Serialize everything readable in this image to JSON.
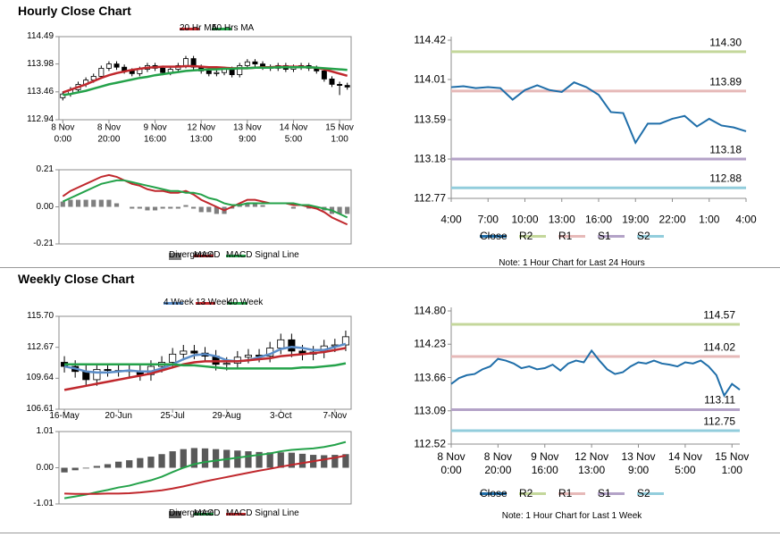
{
  "sections": [
    {
      "title": "Hourly Close Chart"
    },
    {
      "title": "Weekly Close Chart"
    }
  ],
  "chart_data": [
    {
      "type": "candlestick",
      "categories": [
        "8 Nov\n0:00",
        null,
        null,
        null,
        null,
        null,
        "8 Nov\n20:00",
        null,
        null,
        null,
        null,
        null,
        "9 Nov\n16:00",
        null,
        null,
        null,
        null,
        null,
        "12 Nov\n13:00",
        null,
        null,
        null,
        null,
        null,
        "13 Nov\n9:00",
        null,
        null,
        null,
        null,
        null,
        "14 Nov\n5:00",
        null,
        null,
        null,
        null,
        null,
        "15 Nov\n1:00",
        null
      ],
      "open": [
        113.35,
        113.42,
        113.5,
        113.6,
        113.68,
        113.75,
        113.9,
        113.98,
        113.92,
        113.85,
        113.8,
        113.88,
        113.95,
        113.9,
        113.82,
        113.88,
        113.95,
        114.08,
        113.92,
        113.85,
        113.8,
        113.82,
        113.88,
        113.78,
        113.95,
        114.02,
        113.98,
        113.92,
        113.9,
        113.95,
        113.88,
        113.92,
        113.95,
        113.9,
        113.85,
        113.7,
        113.6,
        113.58
      ],
      "high": [
        113.47,
        113.55,
        113.65,
        113.73,
        113.8,
        113.95,
        114.03,
        114.03,
        113.97,
        113.9,
        113.93,
        114.0,
        114.0,
        113.95,
        113.93,
        114.0,
        114.13,
        114.13,
        113.97,
        113.9,
        113.87,
        113.93,
        113.93,
        114.0,
        114.07,
        114.07,
        114.03,
        113.97,
        114.0,
        114.0,
        113.97,
        114.0,
        114.0,
        113.95,
        113.9,
        113.75,
        113.65,
        113.63
      ],
      "low": [
        113.3,
        113.37,
        113.45,
        113.55,
        113.63,
        113.7,
        113.85,
        113.87,
        113.8,
        113.75,
        113.75,
        113.83,
        113.85,
        113.77,
        113.77,
        113.83,
        113.9,
        113.87,
        113.8,
        113.75,
        113.75,
        113.77,
        113.73,
        113.73,
        113.9,
        113.93,
        113.87,
        113.85,
        113.85,
        113.83,
        113.83,
        113.87,
        113.85,
        113.8,
        113.65,
        113.55,
        113.4,
        113.5
      ],
      "close": [
        113.42,
        113.5,
        113.6,
        113.68,
        113.75,
        113.9,
        113.98,
        113.92,
        113.85,
        113.8,
        113.88,
        113.95,
        113.9,
        113.82,
        113.88,
        113.95,
        114.08,
        113.92,
        113.85,
        113.8,
        113.82,
        113.88,
        113.78,
        113.95,
        114.02,
        113.98,
        113.92,
        113.9,
        113.95,
        113.88,
        113.92,
        113.95,
        113.9,
        113.85,
        113.7,
        113.6,
        113.58,
        113.55
      ],
      "up_color": "#ffffff",
      "down_color": "#000000",
      "series": [
        {
          "name": "20 Hr MA",
          "color": "#c0282d",
          "values": [
            113.45,
            113.5,
            113.55,
            113.6,
            113.66,
            113.72,
            113.77,
            113.81,
            113.84,
            113.87,
            113.89,
            113.91,
            113.92,
            113.93,
            113.93,
            113.93,
            113.94,
            113.94,
            113.93,
            113.92,
            113.92,
            113.91,
            113.9,
            113.9,
            113.9,
            113.91,
            113.92,
            113.92,
            113.93,
            113.93,
            113.93,
            113.93,
            113.92,
            113.91,
            113.88,
            113.84,
            113.8,
            113.76
          ]
        },
        {
          "name": "50 Hrs MA",
          "color": "#24a24a",
          "values": [
            113.4,
            113.42,
            113.45,
            113.48,
            113.52,
            113.56,
            113.6,
            113.63,
            113.66,
            113.69,
            113.72,
            113.74,
            113.77,
            113.79,
            113.81,
            113.83,
            113.85,
            113.86,
            113.87,
            113.88,
            113.88,
            113.89,
            113.89,
            113.9,
            113.9,
            113.91,
            113.91,
            113.91,
            113.92,
            113.92,
            113.92,
            113.92,
            113.92,
            113.91,
            113.9,
            113.89,
            113.88,
            113.87
          ]
        }
      ],
      "ylim": [
        112.94,
        114.49
      ],
      "yticks": [
        112.94,
        113.46,
        113.98,
        114.49
      ]
    },
    {
      "type": "macd",
      "series": [
        {
          "name": "Divergence",
          "color": "#7f7f7f",
          "style": "bar",
          "values": [
            0.03,
            0.04,
            0.04,
            0.04,
            0.04,
            0.04,
            0.04,
            0.02,
            0.0,
            -0.01,
            -0.01,
            -0.02,
            -0.02,
            -0.01,
            -0.01,
            -0.01,
            0.01,
            -0.01,
            -0.03,
            -0.03,
            -0.04,
            -0.04,
            -0.01,
            0.01,
            0.02,
            0.02,
            0.01,
            0.0,
            0.0,
            0.0,
            -0.01,
            0.0,
            -0.01,
            -0.01,
            -0.02,
            -0.04,
            -0.04,
            -0.04
          ]
        },
        {
          "name": "MACD",
          "color": "#c0282d",
          "values": [
            0.06,
            0.09,
            0.11,
            0.13,
            0.15,
            0.17,
            0.18,
            0.17,
            0.15,
            0.13,
            0.12,
            0.1,
            0.09,
            0.09,
            0.08,
            0.08,
            0.09,
            0.07,
            0.04,
            0.02,
            0.0,
            -0.02,
            0.0,
            0.02,
            0.04,
            0.04,
            0.03,
            0.02,
            0.02,
            0.02,
            0.01,
            0.01,
            0.0,
            -0.01,
            -0.03,
            -0.06,
            -0.08,
            -0.1
          ]
        },
        {
          "name": "MACD Signal Line",
          "color": "#24a24a",
          "values": [
            0.03,
            0.05,
            0.07,
            0.09,
            0.11,
            0.13,
            0.14,
            0.15,
            0.15,
            0.14,
            0.13,
            0.12,
            0.11,
            0.1,
            0.09,
            0.09,
            0.08,
            0.08,
            0.07,
            0.05,
            0.04,
            0.02,
            0.01,
            0.01,
            0.02,
            0.02,
            0.02,
            0.02,
            0.02,
            0.02,
            0.02,
            0.01,
            0.01,
            0.0,
            -0.01,
            -0.02,
            -0.04,
            -0.06
          ]
        }
      ],
      "ylim": [
        -0.21,
        0.21
      ],
      "yticks": [
        -0.21,
        {
          "value": 0,
          "label": "0.00"
        },
        0.21
      ]
    },
    {
      "type": "line",
      "categories": [
        "4:00",
        null,
        null,
        "7:00",
        null,
        null,
        "10:00",
        null,
        null,
        "13:00",
        null,
        null,
        "16:00",
        null,
        null,
        "19:00",
        null,
        null,
        "22:00",
        null,
        null,
        "1:00",
        null,
        null,
        "4:00"
      ],
      "series": [
        {
          "name": "Close",
          "color": "#1f6ea9",
          "values": [
            113.93,
            113.94,
            113.92,
            113.93,
            113.92,
            113.8,
            113.9,
            113.95,
            113.9,
            113.88,
            113.98,
            113.93,
            113.85,
            113.67,
            113.66,
            113.35,
            113.55,
            113.55,
            113.6,
            113.63,
            113.52,
            113.6,
            113.53,
            113.51,
            113.47
          ]
        }
      ],
      "levels": {
        "names": [
          "R2",
          "R1",
          "S1",
          "S2"
        ],
        "colors": [
          "#c4d79b",
          "#e6b9b8",
          "#b3a2c7",
          "#92cddc"
        ],
        "values": [
          114.3,
          113.89,
          113.18,
          112.88
        ],
        "value_labels": [
          "114.30",
          "113.89",
          "113.18",
          "112.88"
        ]
      },
      "ylim": [
        112.77,
        114.42
      ],
      "yticks": [
        112.77,
        113.18,
        113.59,
        114.01,
        114.42
      ],
      "note": "Note: 1 Hour Chart for Last 24 Hours"
    },
    {
      "type": "candlestick",
      "categories": [
        "16-May",
        null,
        null,
        null,
        null,
        "20-Jun",
        null,
        null,
        null,
        null,
        "25-Jul",
        null,
        null,
        null,
        null,
        "29-Aug",
        null,
        null,
        null,
        null,
        "3-Oct",
        null,
        null,
        null,
        null,
        "7-Nov",
        null
      ],
      "open": [
        111.2,
        110.8,
        110.3,
        109.5,
        110.5,
        110.4,
        110.4,
        110.3,
        110.0,
        110.8,
        111.2,
        112.0,
        112.3,
        112.1,
        111.8,
        111.0,
        111.1,
        111.7,
        111.9,
        111.8,
        112.6,
        113.4,
        112.3,
        112.0,
        112.2,
        112.8,
        112.9
      ],
      "high": [
        111.8,
        111.4,
        110.9,
        111.1,
        111.1,
        111.0,
        111.0,
        110.9,
        111.4,
        111.8,
        112.6,
        112.9,
        112.9,
        112.7,
        112.4,
        111.7,
        112.3,
        112.5,
        112.5,
        113.2,
        114.0,
        114.0,
        112.9,
        112.8,
        113.4,
        113.5,
        114.3
      ],
      "low": [
        110.2,
        109.7,
        108.9,
        108.9,
        109.8,
        109.8,
        109.7,
        109.4,
        109.4,
        110.2,
        110.6,
        111.4,
        111.5,
        111.2,
        110.4,
        110.4,
        110.5,
        111.1,
        111.2,
        111.2,
        112.0,
        111.7,
        111.4,
        111.4,
        111.6,
        112.2,
        112.3
      ],
      "close": [
        110.8,
        110.3,
        109.5,
        110.5,
        110.4,
        110.4,
        110.3,
        110.0,
        110.8,
        111.2,
        112.0,
        112.3,
        112.1,
        111.8,
        111.0,
        111.1,
        111.7,
        111.9,
        111.8,
        112.6,
        113.4,
        112.3,
        112.0,
        112.2,
        112.8,
        112.9,
        113.7
      ],
      "up_color": "#ffffff",
      "down_color": "#000000",
      "series": [
        {
          "name": "4 Week",
          "color": "#5b8dc8",
          "values": [
            110.8,
            110.6,
            110.3,
            110.2,
            110.2,
            110.3,
            110.4,
            110.3,
            110.3,
            110.6,
            111.0,
            111.5,
            111.9,
            112.0,
            111.8,
            111.4,
            111.3,
            111.4,
            111.7,
            112.0,
            112.5,
            112.7,
            112.6,
            112.4,
            112.4,
            112.7,
            113.0
          ]
        },
        {
          "name": "13 Week",
          "color": "#c0282d",
          "values": [
            108.5,
            108.7,
            108.9,
            109.1,
            109.3,
            109.5,
            109.7,
            109.9,
            110.1,
            110.4,
            110.7,
            111.0,
            111.2,
            111.3,
            111.3,
            111.3,
            111.3,
            111.4,
            111.5,
            111.6,
            111.8,
            111.9,
            112.0,
            112.1,
            112.2,
            112.4,
            112.6
          ]
        },
        {
          "name": "40 Week",
          "color": "#24a24a",
          "values": [
            111.0,
            111.0,
            111.0,
            111.0,
            111.0,
            111.0,
            111.0,
            111.0,
            111.0,
            111.0,
            111.0,
            110.9,
            110.9,
            110.8,
            110.7,
            110.6,
            110.6,
            110.6,
            110.6,
            110.6,
            110.6,
            110.6,
            110.7,
            110.7,
            110.8,
            110.9,
            111.1
          ]
        }
      ],
      "ylim": [
        106.61,
        115.7
      ],
      "yticks": [
        106.61,
        109.64,
        112.67,
        {
          "value": 115.7,
          "label": "115.70"
        }
      ]
    },
    {
      "type": "macd",
      "series": [
        {
          "name": "Divergence",
          "color": "#595959",
          "style": "bar",
          "values": [
            -0.13,
            -0.07,
            -0.02,
            0.05,
            0.1,
            0.17,
            0.21,
            0.27,
            0.31,
            0.38,
            0.46,
            0.52,
            0.55,
            0.54,
            0.52,
            0.5,
            0.48,
            0.46,
            0.44,
            0.43,
            0.43,
            0.42,
            0.39,
            0.36,
            0.35,
            0.36,
            0.38
          ]
        },
        {
          "name": "MACD",
          "color": "#24a24a",
          "values": [
            -0.85,
            -0.8,
            -0.75,
            -0.68,
            -0.62,
            -0.55,
            -0.5,
            -0.42,
            -0.35,
            -0.25,
            -0.12,
            0.0,
            0.1,
            0.16,
            0.2,
            0.24,
            0.28,
            0.32,
            0.36,
            0.4,
            0.46,
            0.5,
            0.52,
            0.54,
            0.58,
            0.64,
            0.72
          ]
        },
        {
          "name": "MACD Signal Line",
          "color": "#c0282d",
          "values": [
            -0.72,
            -0.73,
            -0.73,
            -0.73,
            -0.72,
            -0.72,
            -0.71,
            -0.69,
            -0.66,
            -0.63,
            -0.58,
            -0.52,
            -0.45,
            -0.38,
            -0.32,
            -0.26,
            -0.2,
            -0.14,
            -0.08,
            -0.03,
            0.03,
            0.08,
            0.13,
            0.18,
            0.23,
            0.28,
            0.34
          ]
        }
      ],
      "ylim": [
        -1.01,
        1.01
      ],
      "yticks": [
        -1.01,
        {
          "value": 0,
          "label": "0.00"
        },
        1.01
      ]
    },
    {
      "type": "line",
      "categories": [
        "8 Nov\n0:00",
        null,
        null,
        null,
        null,
        null,
        "8 Nov\n20:00",
        null,
        null,
        null,
        null,
        null,
        "9 Nov\n16:00",
        null,
        null,
        null,
        null,
        null,
        "12 Nov\n13:00",
        null,
        null,
        null,
        null,
        null,
        "13 Nov\n9:00",
        null,
        null,
        null,
        null,
        null,
        "14 Nov\n5:00",
        null,
        null,
        null,
        null,
        null,
        "15 Nov\n1:00",
        null
      ],
      "series": [
        {
          "name": "Close",
          "color": "#1f6ea9",
          "values": [
            113.55,
            113.65,
            113.7,
            113.72,
            113.8,
            113.85,
            113.98,
            113.95,
            113.9,
            113.82,
            113.85,
            113.8,
            113.82,
            113.88,
            113.78,
            113.9,
            113.95,
            113.92,
            114.12,
            113.95,
            113.8,
            113.72,
            113.75,
            113.85,
            113.92,
            113.9,
            113.95,
            113.9,
            113.88,
            113.85,
            113.92,
            113.9,
            113.95,
            113.85,
            113.7,
            113.35,
            113.55,
            113.45
          ]
        }
      ],
      "levels": {
        "names": [
          "R2",
          "R1",
          "S1",
          "S2"
        ],
        "colors": [
          "#c4d79b",
          "#e6b9b8",
          "#b3a2c7",
          "#92cddc"
        ],
        "values": [
          114.57,
          114.02,
          113.11,
          112.75
        ],
        "value_labels": [
          "114.57",
          "114.02",
          "113.11",
          "112.75"
        ]
      },
      "ylim": [
        112.52,
        114.8
      ],
      "yticks": [
        112.52,
        113.09,
        113.66,
        114.23,
        {
          "value": 114.8,
          "label": "114.80"
        }
      ],
      "note": "Note: 1 Hour Chart for Last 1 Week"
    }
  ]
}
